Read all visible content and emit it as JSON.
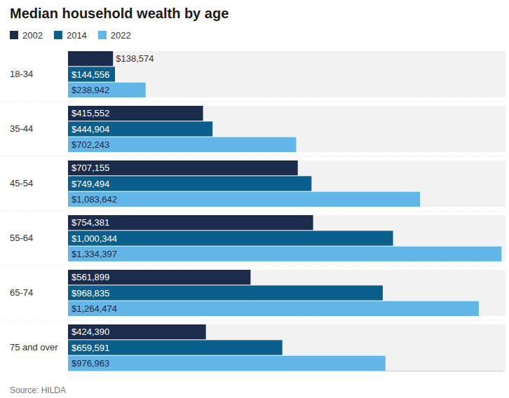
{
  "chart_data": {
    "type": "bar",
    "orientation": "horizontal",
    "title": "Median household wealth by age",
    "source": "Source: HILDA",
    "categories": [
      "18-34",
      "35-44",
      "45-54",
      "55-64",
      "65-74",
      "75 and over"
    ],
    "series": [
      {
        "name": "2002",
        "color": "#1b2b4b",
        "values": [
          138574,
          415552,
          707155,
          754381,
          561899,
          424390
        ],
        "value_labels": [
          "$138,574",
          "$415,552",
          "$707,155",
          "$754,381",
          "$561,899",
          "$424,390"
        ]
      },
      {
        "name": "2014",
        "color": "#0b5f8d",
        "values": [
          144556,
          444904,
          749494,
          1000344,
          968835,
          659591
        ],
        "value_labels": [
          "$144,556",
          "$444,904",
          "$749,494",
          "$1,000,344",
          "$968,835",
          "$659,591"
        ]
      },
      {
        "name": "2022",
        "color": "#62b6e8",
        "values": [
          238942,
          702243,
          1083642,
          1334397,
          1264474,
          976963
        ],
        "value_labels": [
          "$238,942",
          "$702,243",
          "$1,083,642",
          "$1,334,397",
          "$1,264,474",
          "$976,963"
        ]
      }
    ],
    "xlim": [
      0,
      1340000
    ],
    "xticks": [],
    "tick_labels": "y",
    "data_labels": true,
    "legend": "top-left",
    "grid": false
  }
}
